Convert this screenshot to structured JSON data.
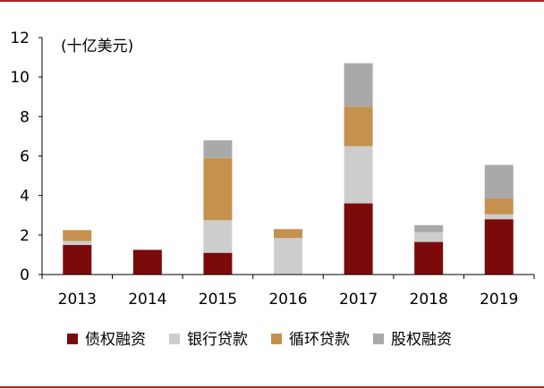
{
  "chart_data": {
    "type": "bar",
    "stacked": true,
    "unit_label": "(十亿美元)",
    "categories": [
      "2013",
      "2014",
      "2015",
      "2016",
      "2017",
      "2018",
      "2019"
    ],
    "ylim": [
      0,
      12
    ],
    "yticks": [
      "0",
      "2",
      "4",
      "6",
      "8",
      "10",
      "12"
    ],
    "ytick_values": [
      0,
      2,
      4,
      6,
      8,
      10,
      12
    ],
    "legend_position": "bottom",
    "series": [
      {
        "name": "债权融资",
        "color": "#7B0A0A",
        "values": [
          1.5,
          1.25,
          1.1,
          0,
          3.6,
          1.65,
          2.8
        ]
      },
      {
        "name": "银行贷款",
        "color": "#CDCDCD",
        "values": [
          0.2,
          0,
          1.65,
          1.85,
          2.9,
          0.5,
          0.25
        ]
      },
      {
        "name": "循环贷款",
        "color": "#C4924E",
        "values": [
          0.55,
          0,
          3.15,
          0.45,
          2.0,
          0,
          0.8
        ]
      },
      {
        "name": "股权融资",
        "color": "#A9A9A9",
        "values": [
          0,
          0,
          0.9,
          0,
          2.2,
          0.35,
          1.7
        ]
      }
    ]
  },
  "colors": {
    "frame_rule": "#B22222",
    "axis": "#000000"
  }
}
